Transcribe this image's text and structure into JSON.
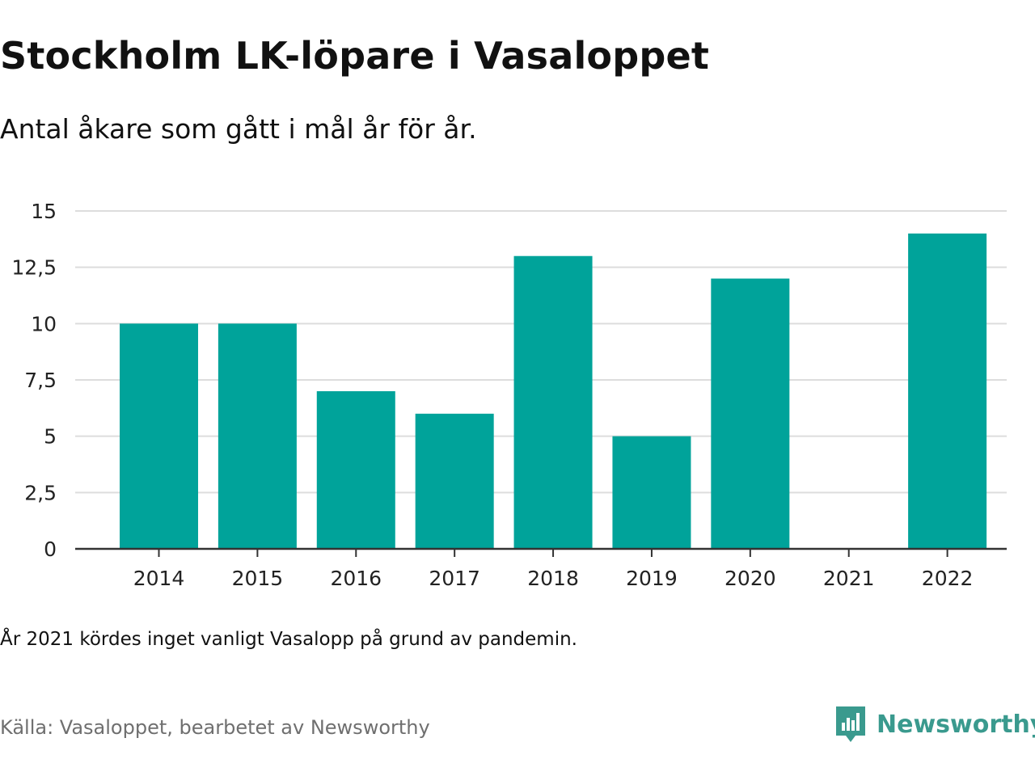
{
  "title": "Stockholm LK-löpare i Vasaloppet",
  "subtitle": "Antal åkare som gått i mål år för år.",
  "note": "År 2021 kördes inget vanligt Vasalopp på grund av pandemin.",
  "source": "Källa: Vasaloppet, bearbetet av Newsworthy",
  "brand": {
    "name": "Newsworthy",
    "icon": "newsworthy-logo-icon",
    "color": "#3a9a8e"
  },
  "chart_data": {
    "type": "bar",
    "categories": [
      "2014",
      "2015",
      "2016",
      "2017",
      "2018",
      "2019",
      "2020",
      "2021",
      "2022"
    ],
    "values": [
      10,
      10,
      7,
      6,
      13,
      5,
      12,
      0,
      14
    ],
    "ylim": [
      0,
      15
    ],
    "yticks": [
      0,
      2.5,
      5,
      7.5,
      10,
      12.5,
      15
    ],
    "ytick_labels": [
      "0",
      "2,5",
      "5",
      "7,5",
      "10",
      "12,5",
      "15"
    ],
    "grid": true,
    "bar_color": "#00a39a",
    "grid_color": "#dddddd",
    "xlabel": "",
    "ylabel": ""
  }
}
